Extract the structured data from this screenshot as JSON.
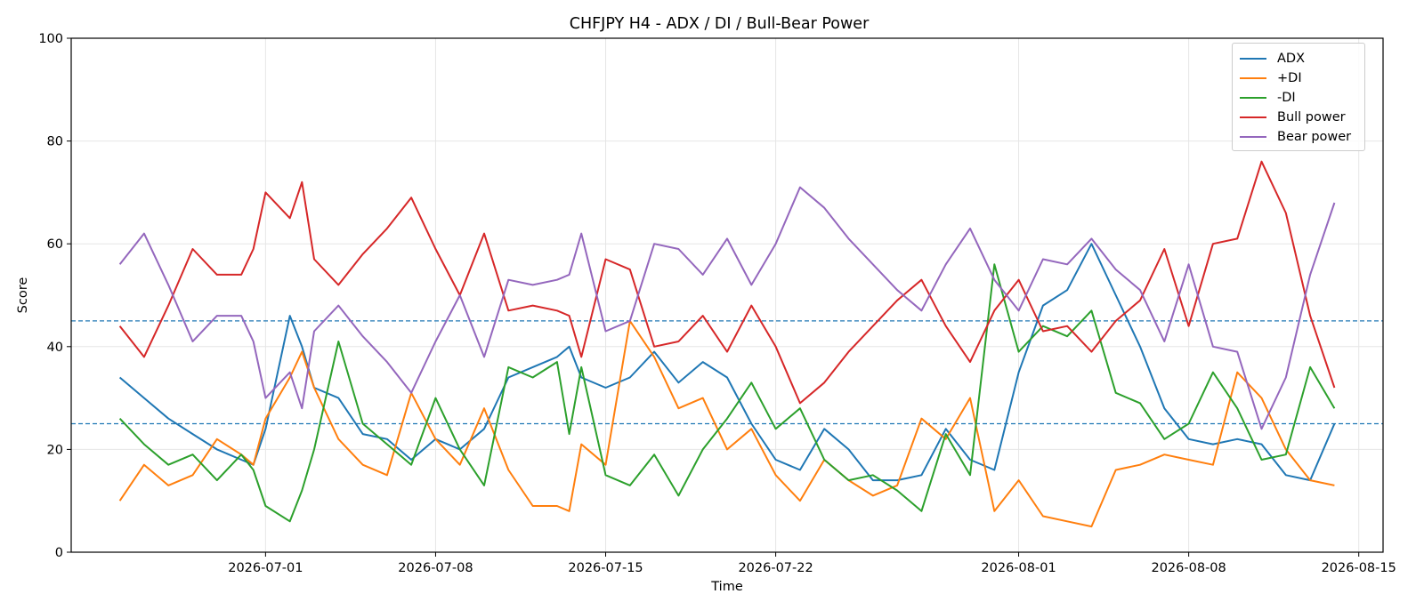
{
  "chart_data": {
    "type": "line",
    "title": "CHFJPY H4 - ADX / DI / Bull-Bear Power",
    "xlabel": "Time",
    "ylabel": "Score",
    "ylim": [
      0,
      100
    ],
    "xlim": [
      "2026-06-23",
      "2026-08-16"
    ],
    "x_ticks": [
      "2026-07-01",
      "2026-07-08",
      "2026-07-15",
      "2026-07-22",
      "2026-08-01",
      "2026-08-08",
      "2026-08-15"
    ],
    "y_ticks": [
      0,
      20,
      40,
      60,
      80,
      100
    ],
    "grid": true,
    "legend_position": "top-right",
    "reference_lines": [
      45,
      25
    ],
    "reference_line_color": "#1f77b4",
    "series": [
      {
        "name": "ADX",
        "color": "#1f77b4",
        "points": [
          [
            "2026-06-25",
            34
          ],
          [
            "2026-06-26",
            30
          ],
          [
            "2026-06-27",
            26
          ],
          [
            "2026-06-28",
            23
          ],
          [
            "2026-06-29",
            20
          ],
          [
            "2026-06-30",
            18
          ],
          [
            "2026-06-30 12:00",
            17
          ],
          [
            "2026-07-01",
            24
          ],
          [
            "2026-07-02",
            46
          ],
          [
            "2026-07-02 12:00",
            40
          ],
          [
            "2026-07-03",
            32
          ],
          [
            "2026-07-04",
            30
          ],
          [
            "2026-07-05",
            23
          ],
          [
            "2026-07-06",
            22
          ],
          [
            "2026-07-07",
            18
          ],
          [
            "2026-07-08",
            22
          ],
          [
            "2026-07-09",
            20
          ],
          [
            "2026-07-10",
            24
          ],
          [
            "2026-07-11",
            34
          ],
          [
            "2026-07-12",
            36
          ],
          [
            "2026-07-13",
            38
          ],
          [
            "2026-07-13 12:00",
            40
          ],
          [
            "2026-07-14",
            34
          ],
          [
            "2026-07-15",
            32
          ],
          [
            "2026-07-16",
            34
          ],
          [
            "2026-07-17",
            39
          ],
          [
            "2026-07-18",
            33
          ],
          [
            "2026-07-19",
            37
          ],
          [
            "2026-07-20",
            34
          ],
          [
            "2026-07-21",
            25
          ],
          [
            "2026-07-22",
            18
          ],
          [
            "2026-07-23",
            16
          ],
          [
            "2026-07-24",
            24
          ],
          [
            "2026-07-25",
            20
          ],
          [
            "2026-07-26",
            14
          ],
          [
            "2026-07-27",
            14
          ],
          [
            "2026-07-28",
            15
          ],
          [
            "2026-07-29",
            24
          ],
          [
            "2026-07-30",
            18
          ],
          [
            "2026-07-31",
            16
          ],
          [
            "2026-08-01",
            35
          ],
          [
            "2026-08-02",
            48
          ],
          [
            "2026-08-03",
            51
          ],
          [
            "2026-08-04",
            60
          ],
          [
            "2026-08-05",
            50
          ],
          [
            "2026-08-06",
            40
          ],
          [
            "2026-08-07",
            28
          ],
          [
            "2026-08-08",
            22
          ],
          [
            "2026-08-09",
            21
          ],
          [
            "2026-08-10",
            22
          ],
          [
            "2026-08-11",
            21
          ],
          [
            "2026-08-12",
            15
          ],
          [
            "2026-08-13",
            14
          ],
          [
            "2026-08-14",
            25
          ]
        ]
      },
      {
        "name": "+DI",
        "color": "#ff7f0e",
        "points": [
          [
            "2026-06-25",
            10
          ],
          [
            "2026-06-26",
            17
          ],
          [
            "2026-06-27",
            13
          ],
          [
            "2026-06-28",
            15
          ],
          [
            "2026-06-29",
            22
          ],
          [
            "2026-06-30",
            19
          ],
          [
            "2026-06-30 12:00",
            17
          ],
          [
            "2026-07-01",
            26
          ],
          [
            "2026-07-02",
            34
          ],
          [
            "2026-07-02 12:00",
            39
          ],
          [
            "2026-07-03",
            32
          ],
          [
            "2026-07-04",
            22
          ],
          [
            "2026-07-05",
            17
          ],
          [
            "2026-07-06",
            15
          ],
          [
            "2026-07-07",
            31
          ],
          [
            "2026-07-08",
            22
          ],
          [
            "2026-07-09",
            17
          ],
          [
            "2026-07-10",
            28
          ],
          [
            "2026-07-11",
            16
          ],
          [
            "2026-07-12",
            9
          ],
          [
            "2026-07-13",
            9
          ],
          [
            "2026-07-13 12:00",
            8
          ],
          [
            "2026-07-14",
            21
          ],
          [
            "2026-07-15",
            17
          ],
          [
            "2026-07-16",
            45
          ],
          [
            "2026-07-17",
            38
          ],
          [
            "2026-07-18",
            28
          ],
          [
            "2026-07-19",
            30
          ],
          [
            "2026-07-20",
            20
          ],
          [
            "2026-07-21",
            24
          ],
          [
            "2026-07-22",
            15
          ],
          [
            "2026-07-23",
            10
          ],
          [
            "2026-07-24",
            18
          ],
          [
            "2026-07-25",
            14
          ],
          [
            "2026-07-26",
            11
          ],
          [
            "2026-07-27",
            13
          ],
          [
            "2026-07-28",
            26
          ],
          [
            "2026-07-29",
            22
          ],
          [
            "2026-07-30",
            30
          ],
          [
            "2026-07-31",
            8
          ],
          [
            "2026-08-01",
            14
          ],
          [
            "2026-08-02",
            7
          ],
          [
            "2026-08-03",
            6
          ],
          [
            "2026-08-04",
            5
          ],
          [
            "2026-08-05",
            16
          ],
          [
            "2026-08-06",
            17
          ],
          [
            "2026-08-07",
            19
          ],
          [
            "2026-08-08",
            18
          ],
          [
            "2026-08-09",
            17
          ],
          [
            "2026-08-10",
            35
          ],
          [
            "2026-08-11",
            30
          ],
          [
            "2026-08-12",
            20
          ],
          [
            "2026-08-13",
            14
          ],
          [
            "2026-08-14",
            13
          ]
        ]
      },
      {
        "name": "-DI",
        "color": "#2ca02c",
        "points": [
          [
            "2026-06-25",
            26
          ],
          [
            "2026-06-26",
            21
          ],
          [
            "2026-06-27",
            17
          ],
          [
            "2026-06-28",
            19
          ],
          [
            "2026-06-29",
            14
          ],
          [
            "2026-06-30",
            19
          ],
          [
            "2026-06-30 12:00",
            16
          ],
          [
            "2026-07-01",
            9
          ],
          [
            "2026-07-02",
            6
          ],
          [
            "2026-07-02 12:00",
            12
          ],
          [
            "2026-07-03",
            20
          ],
          [
            "2026-07-04",
            41
          ],
          [
            "2026-07-05",
            25
          ],
          [
            "2026-07-06",
            21
          ],
          [
            "2026-07-07",
            17
          ],
          [
            "2026-07-08",
            30
          ],
          [
            "2026-07-09",
            20
          ],
          [
            "2026-07-10",
            13
          ],
          [
            "2026-07-11",
            36
          ],
          [
            "2026-07-12",
            34
          ],
          [
            "2026-07-13",
            37
          ],
          [
            "2026-07-13 12:00",
            23
          ],
          [
            "2026-07-14",
            36
          ],
          [
            "2026-07-15",
            15
          ],
          [
            "2026-07-16",
            13
          ],
          [
            "2026-07-17",
            19
          ],
          [
            "2026-07-18",
            11
          ],
          [
            "2026-07-19",
            20
          ],
          [
            "2026-07-20",
            26
          ],
          [
            "2026-07-21",
            33
          ],
          [
            "2026-07-22",
            24
          ],
          [
            "2026-07-23",
            28
          ],
          [
            "2026-07-24",
            18
          ],
          [
            "2026-07-25",
            14
          ],
          [
            "2026-07-26",
            15
          ],
          [
            "2026-07-27",
            12
          ],
          [
            "2026-07-28",
            8
          ],
          [
            "2026-07-29",
            23
          ],
          [
            "2026-07-30",
            15
          ],
          [
            "2026-07-31",
            56
          ],
          [
            "2026-08-01",
            39
          ],
          [
            "2026-08-02",
            44
          ],
          [
            "2026-08-03",
            42
          ],
          [
            "2026-08-04",
            47
          ],
          [
            "2026-08-05",
            31
          ],
          [
            "2026-08-06",
            29
          ],
          [
            "2026-08-07",
            22
          ],
          [
            "2026-08-08",
            25
          ],
          [
            "2026-08-09",
            35
          ],
          [
            "2026-08-10",
            28
          ],
          [
            "2026-08-11",
            18
          ],
          [
            "2026-08-12",
            19
          ],
          [
            "2026-08-13",
            36
          ],
          [
            "2026-08-14",
            28
          ]
        ]
      },
      {
        "name": "Bull power",
        "color": "#d62728",
        "points": [
          [
            "2026-06-25",
            44
          ],
          [
            "2026-06-26",
            38
          ],
          [
            "2026-06-27",
            48
          ],
          [
            "2026-06-28",
            59
          ],
          [
            "2026-06-29",
            54
          ],
          [
            "2026-06-30",
            54
          ],
          [
            "2026-06-30 12:00",
            59
          ],
          [
            "2026-07-01",
            70
          ],
          [
            "2026-07-02",
            65
          ],
          [
            "2026-07-02 12:00",
            72
          ],
          [
            "2026-07-03",
            57
          ],
          [
            "2026-07-04",
            52
          ],
          [
            "2026-07-05",
            58
          ],
          [
            "2026-07-06",
            63
          ],
          [
            "2026-07-07",
            69
          ],
          [
            "2026-07-08",
            59
          ],
          [
            "2026-07-09",
            50
          ],
          [
            "2026-07-10",
            62
          ],
          [
            "2026-07-11",
            47
          ],
          [
            "2026-07-12",
            48
          ],
          [
            "2026-07-13",
            47
          ],
          [
            "2026-07-13 12:00",
            46
          ],
          [
            "2026-07-14",
            38
          ],
          [
            "2026-07-15",
            57
          ],
          [
            "2026-07-16",
            55
          ],
          [
            "2026-07-17",
            40
          ],
          [
            "2026-07-18",
            41
          ],
          [
            "2026-07-19",
            46
          ],
          [
            "2026-07-20",
            39
          ],
          [
            "2026-07-21",
            48
          ],
          [
            "2026-07-22",
            40
          ],
          [
            "2026-07-23",
            29
          ],
          [
            "2026-07-24",
            33
          ],
          [
            "2026-07-25",
            39
          ],
          [
            "2026-07-26",
            44
          ],
          [
            "2026-07-27",
            49
          ],
          [
            "2026-07-28",
            53
          ],
          [
            "2026-07-29",
            44
          ],
          [
            "2026-07-30",
            37
          ],
          [
            "2026-07-31",
            47
          ],
          [
            "2026-08-01",
            53
          ],
          [
            "2026-08-02",
            43
          ],
          [
            "2026-08-03",
            44
          ],
          [
            "2026-08-04",
            39
          ],
          [
            "2026-08-05",
            45
          ],
          [
            "2026-08-06",
            49
          ],
          [
            "2026-08-07",
            59
          ],
          [
            "2026-08-08",
            44
          ],
          [
            "2026-08-09",
            60
          ],
          [
            "2026-08-10",
            61
          ],
          [
            "2026-08-11",
            76
          ],
          [
            "2026-08-12",
            66
          ],
          [
            "2026-08-13",
            46
          ],
          [
            "2026-08-14",
            32
          ]
        ]
      },
      {
        "name": "Bear power",
        "color": "#9467bd",
        "points": [
          [
            "2026-06-25",
            56
          ],
          [
            "2026-06-26",
            62
          ],
          [
            "2026-06-27",
            52
          ],
          [
            "2026-06-28",
            41
          ],
          [
            "2026-06-29",
            46
          ],
          [
            "2026-06-30",
            46
          ],
          [
            "2026-06-30 12:00",
            41
          ],
          [
            "2026-07-01",
            30
          ],
          [
            "2026-07-02",
            35
          ],
          [
            "2026-07-02 12:00",
            28
          ],
          [
            "2026-07-03",
            43
          ],
          [
            "2026-07-04",
            48
          ],
          [
            "2026-07-05",
            42
          ],
          [
            "2026-07-06",
            37
          ],
          [
            "2026-07-07",
            31
          ],
          [
            "2026-07-08",
            41
          ],
          [
            "2026-07-09",
            50
          ],
          [
            "2026-07-10",
            38
          ],
          [
            "2026-07-11",
            53
          ],
          [
            "2026-07-12",
            52
          ],
          [
            "2026-07-13",
            53
          ],
          [
            "2026-07-13 12:00",
            54
          ],
          [
            "2026-07-14",
            62
          ],
          [
            "2026-07-15",
            43
          ],
          [
            "2026-07-16",
            45
          ],
          [
            "2026-07-17",
            60
          ],
          [
            "2026-07-18",
            59
          ],
          [
            "2026-07-19",
            54
          ],
          [
            "2026-07-20",
            61
          ],
          [
            "2026-07-21",
            52
          ],
          [
            "2026-07-22",
            60
          ],
          [
            "2026-07-23",
            71
          ],
          [
            "2026-07-24",
            67
          ],
          [
            "2026-07-25",
            61
          ],
          [
            "2026-07-26",
            56
          ],
          [
            "2026-07-27",
            51
          ],
          [
            "2026-07-28",
            47
          ],
          [
            "2026-07-29",
            56
          ],
          [
            "2026-07-30",
            63
          ],
          [
            "2026-07-31",
            53
          ],
          [
            "2026-08-01",
            47
          ],
          [
            "2026-08-02",
            57
          ],
          [
            "2026-08-03",
            56
          ],
          [
            "2026-08-04",
            61
          ],
          [
            "2026-08-05",
            55
          ],
          [
            "2026-08-06",
            51
          ],
          [
            "2026-08-07",
            41
          ],
          [
            "2026-08-08",
            56
          ],
          [
            "2026-08-09",
            40
          ],
          [
            "2026-08-10",
            39
          ],
          [
            "2026-08-11",
            24
          ],
          [
            "2026-08-12",
            34
          ],
          [
            "2026-08-13",
            54
          ],
          [
            "2026-08-14",
            68
          ]
        ]
      }
    ]
  }
}
